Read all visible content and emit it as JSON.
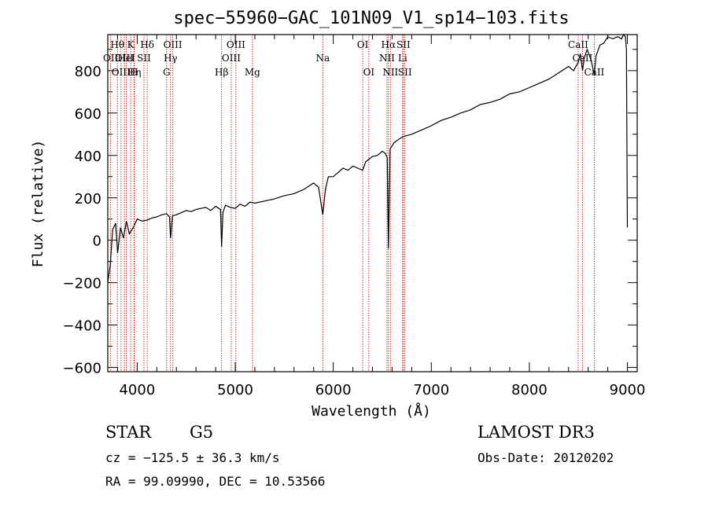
{
  "chart_data": {
    "type": "line",
    "title": "spec−55960−GAC_101N09_V1_sp14−103.fits",
    "xlabel": "Wavelength (Å)",
    "ylabel": "Flux (relative)",
    "xlim": [
      3700,
      9100
    ],
    "ylim": [
      -620,
      970
    ],
    "xticks": [
      4000,
      5000,
      6000,
      7000,
      8000,
      9000
    ],
    "xtick_labels": [
      "4000",
      "5000",
      "6000",
      "7000",
      "8000",
      "9000"
    ],
    "yticks": [
      -600,
      -400,
      -200,
      0,
      200,
      400,
      600,
      800
    ],
    "ytick_labels": [
      "−600",
      "−400",
      "−200",
      "0",
      "200",
      "400",
      "600",
      "800"
    ],
    "grid": false,
    "series": [
      {
        "name": "spectrum",
        "x": [
          3700,
          3725,
          3750,
          3780,
          3800,
          3830,
          3860,
          3890,
          3920,
          3960,
          4000,
          4050,
          4101,
          4150,
          4200,
          4250,
          4300,
          4330,
          4340,
          4360,
          4400,
          4450,
          4500,
          4550,
          4600,
          4650,
          4700,
          4750,
          4800,
          4850,
          4861,
          4875,
          4900,
          4950,
          5000,
          5050,
          5100,
          5150,
          5200,
          5300,
          5400,
          5500,
          5600,
          5700,
          5800,
          5850,
          5893,
          5920,
          5950,
          6000,
          6050,
          6100,
          6150,
          6200,
          6250,
          6300,
          6330,
          6400,
          6450,
          6500,
          6530,
          6550,
          6563,
          6580,
          6620,
          6680,
          6720,
          6800,
          6900,
          7000,
          7100,
          7200,
          7300,
          7400,
          7500,
          7600,
          7700,
          7800,
          7900,
          8000,
          8100,
          8200,
          8300,
          8400,
          8450,
          8500,
          8520,
          8542,
          8560,
          8590,
          8630,
          8662,
          8680,
          8720,
          8760,
          8800,
          8850,
          8900,
          8940,
          8960,
          8980,
          8990,
          9000
        ],
        "y": [
          -200,
          -120,
          50,
          80,
          -60,
          60,
          10,
          90,
          30,
          60,
          100,
          90,
          95,
          105,
          110,
          120,
          125,
          110,
          10,
          115,
          120,
          130,
          140,
          135,
          145,
          150,
          155,
          140,
          160,
          145,
          -30,
          130,
          165,
          155,
          150,
          170,
          160,
          180,
          175,
          185,
          195,
          210,
          220,
          240,
          270,
          250,
          120,
          240,
          300,
          300,
          320,
          340,
          330,
          350,
          340,
          330,
          370,
          395,
          400,
          420,
          410,
          390,
          -40,
          430,
          460,
          480,
          490,
          500,
          520,
          540,
          565,
          580,
          600,
          615,
          640,
          650,
          665,
          690,
          700,
          720,
          740,
          760,
          790,
          820,
          800,
          840,
          880,
          800,
          860,
          900,
          850,
          780,
          870,
          920,
          930,
          960,
          950,
          960,
          950,
          970,
          960,
          900,
          60
        ]
      }
    ],
    "line_markers": [
      {
        "wl": 3729,
        "label": "OII",
        "row": 2
      },
      {
        "wl": 3798,
        "label": "Hθ",
        "row": 1
      },
      {
        "wl": 3835,
        "label": "OIII",
        "row": 3
      },
      {
        "wl": 3869,
        "label": "OIII",
        "row": 2
      },
      {
        "wl": 3889,
        "label": "HeI",
        "row": 2
      },
      {
        "wl": 3934,
        "label": "K",
        "row": 1
      },
      {
        "wl": 3970,
        "label": "Hη",
        "row": 3
      },
      {
        "wl": 3968,
        "label": "H",
        "row": 3
      },
      {
        "wl": 4069,
        "label": "SII",
        "row": 2
      },
      {
        "wl": 4102,
        "label": "Hδ",
        "row": 1
      },
      {
        "wl": 4300,
        "label": "G",
        "row": 3
      },
      {
        "wl": 4340,
        "label": "Hγ",
        "row": 2
      },
      {
        "wl": 4363,
        "label": "OIII",
        "row": 1
      },
      {
        "wl": 4861,
        "label": "Hβ",
        "row": 3
      },
      {
        "wl": 4959,
        "label": "OIII",
        "row": 2
      },
      {
        "wl": 5007,
        "label": "OIII",
        "row": 1
      },
      {
        "wl": 5175,
        "label": "Mg",
        "row": 3
      },
      {
        "wl": 5893,
        "label": "Na",
        "row": 2
      },
      {
        "wl": 6300,
        "label": "OI",
        "row": 1
      },
      {
        "wl": 6363,
        "label": "OI",
        "row": 3
      },
      {
        "wl": 6548,
        "label": "NII",
        "row": 2
      },
      {
        "wl": 6563,
        "label": "Hα",
        "row": 1
      },
      {
        "wl": 6583,
        "label": "NII",
        "row": 3
      },
      {
        "wl": 6707,
        "label": "Li",
        "row": 2
      },
      {
        "wl": 6716,
        "label": "SII",
        "row": 1
      },
      {
        "wl": 6731,
        "label": "SII",
        "row": 3
      },
      {
        "wl": 8498,
        "label": "CaII",
        "row": 1
      },
      {
        "wl": 8542,
        "label": "CaII",
        "row": 2
      },
      {
        "wl": 8662,
        "label": "CaII",
        "row": 3
      }
    ]
  },
  "info": {
    "object_class": "STAR",
    "subclass": "G5",
    "survey": "LAMOST DR3",
    "cz": "cz = −125.5 ± 36.3 km/s",
    "obs_date": "Obs-Date: 20120202",
    "coords": "RA =  99.09990, DEC =  10.53566"
  },
  "colors": {
    "axes": "#000000",
    "spectrum": "#000000",
    "marker_line": "#c00000"
  }
}
